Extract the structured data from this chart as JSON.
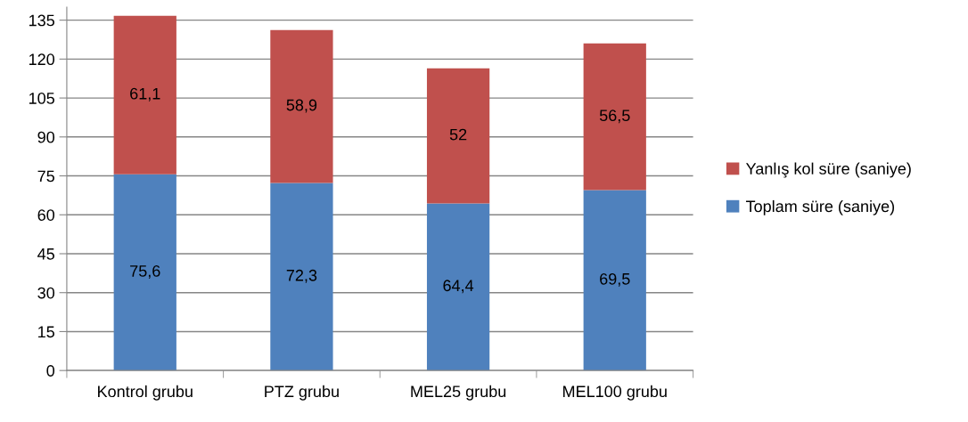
{
  "chart_data": {
    "type": "bar",
    "stacked": true,
    "categories": [
      "Kontrol grubu",
      "PTZ grubu",
      "MEL25 grubu",
      "MEL100 grubu"
    ],
    "series": [
      {
        "name": "Toplam süre (saniye)",
        "color": "#4f81bd",
        "values": [
          75.6,
          72.3,
          64.4,
          69.5
        ],
        "value_labels": [
          "75,6",
          "72,3",
          "64,4",
          "69,5"
        ]
      },
      {
        "name": "Yanlış kol süre (saniye)",
        "color": "#c0504d",
        "values": [
          61.1,
          58.9,
          52,
          56.5
        ],
        "value_labels": [
          "61,1",
          "58,9",
          "52",
          "56,5"
        ]
      }
    ],
    "ylim": [
      0,
      140
    ],
    "yticks": [
      0,
      15,
      30,
      45,
      60,
      75,
      90,
      105,
      120,
      135
    ],
    "grid": "y",
    "legend": "right"
  }
}
